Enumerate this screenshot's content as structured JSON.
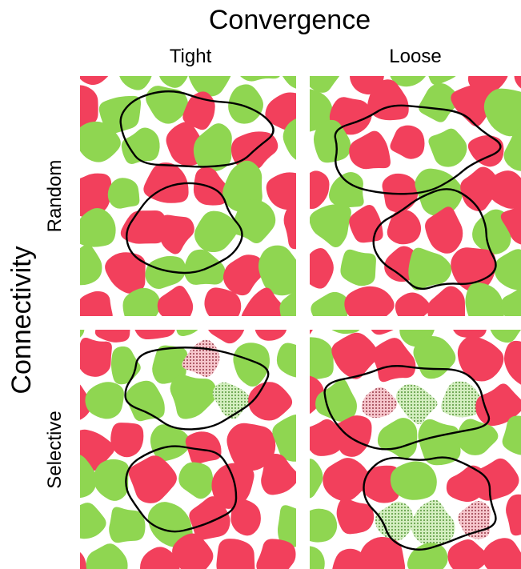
{
  "title": "Convergence",
  "columns": [
    "Tight",
    "Loose"
  ],
  "row_axis": "Connectivity",
  "rows": [
    "Random",
    "Selective"
  ]
}
